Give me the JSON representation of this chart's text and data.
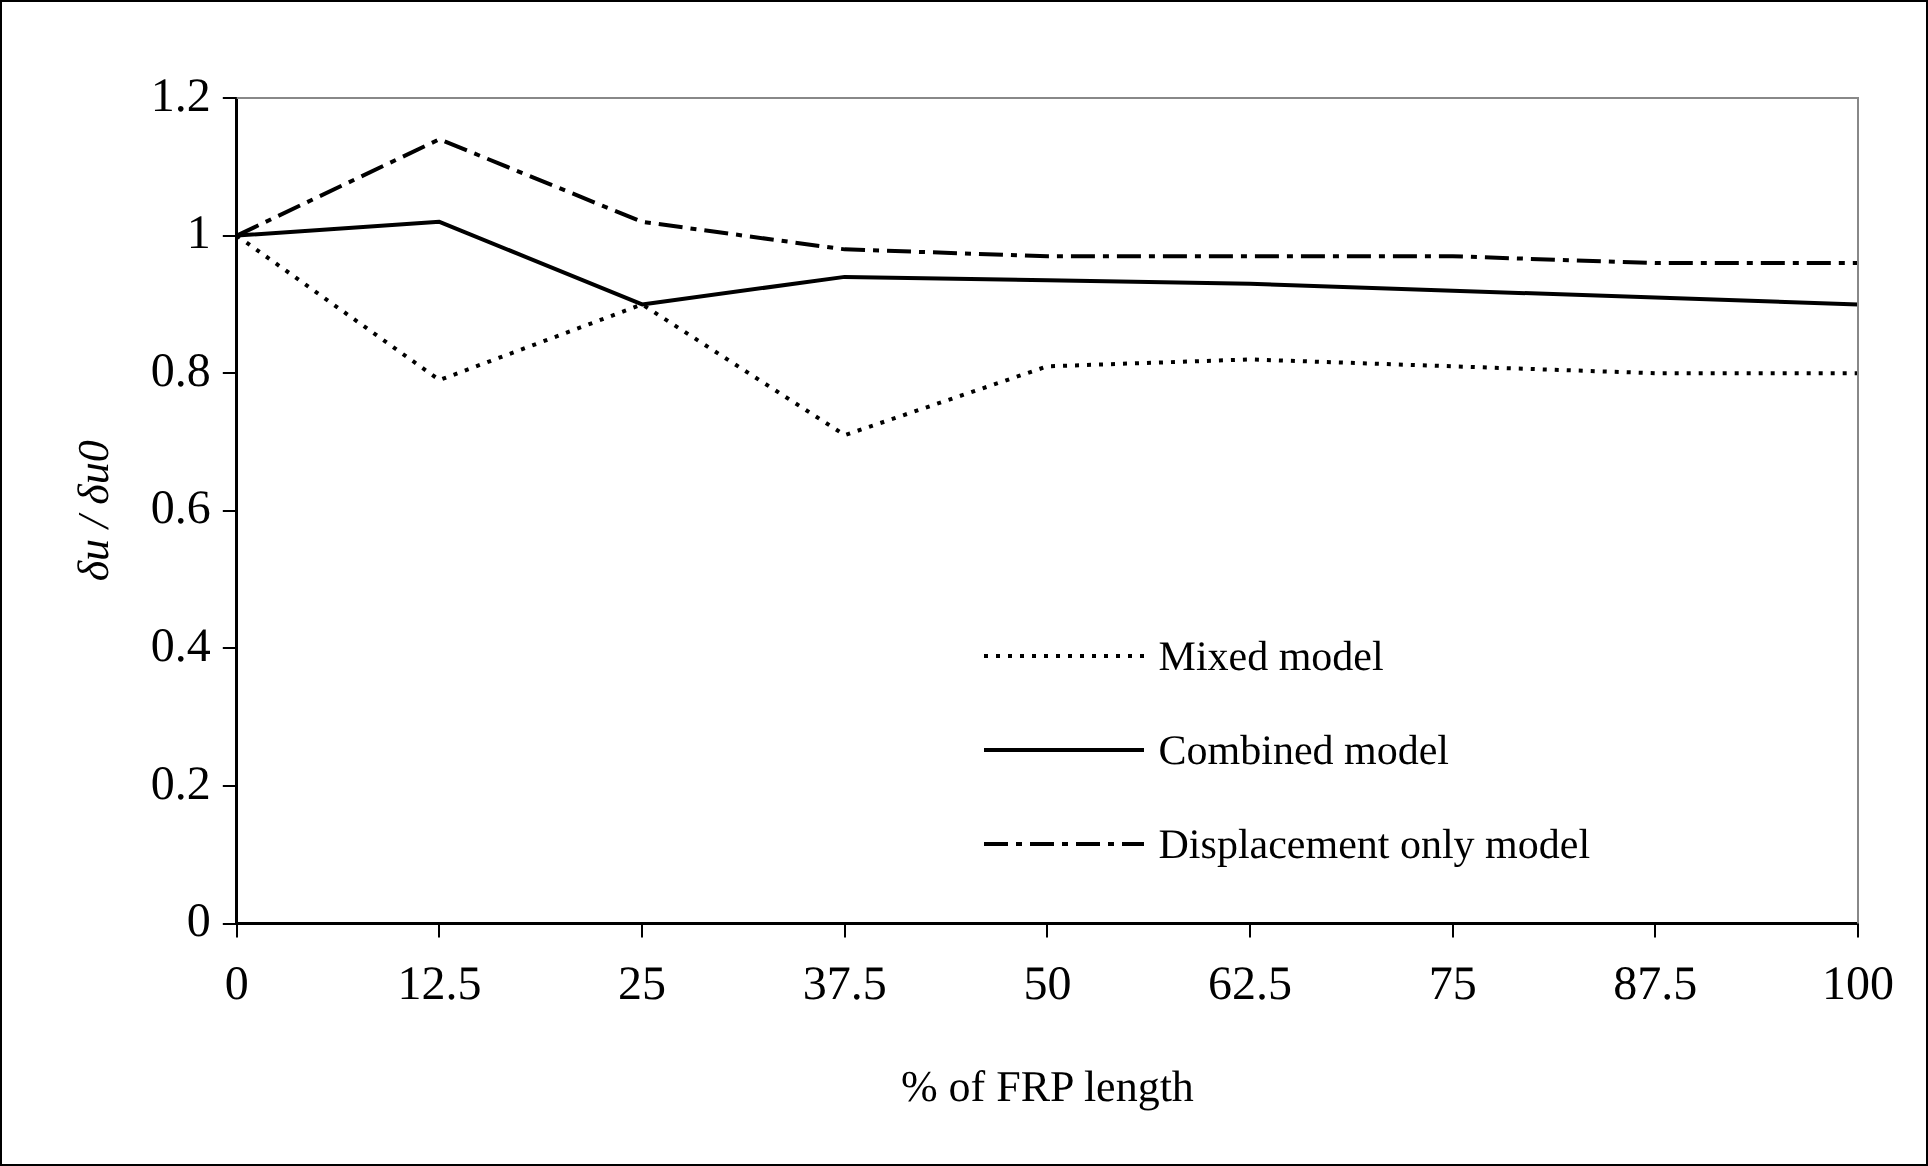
{
  "chart_data": {
    "type": "line",
    "xlabel": "% of FRP length",
    "ylabel": "δu / δu0",
    "categories": [
      "0",
      "12.5",
      "25",
      "37.5",
      "50",
      "62.5",
      "75",
      "87.5",
      "100"
    ],
    "series": [
      {
        "name": "Mixed model",
        "color": "#000000",
        "line_style": "dotted",
        "values": [
          1,
          0.79,
          0.9,
          0.71,
          0.81,
          0.82,
          0.81,
          0.8,
          0.8
        ]
      },
      {
        "name": "Combined model",
        "color": "#000000",
        "line_style": "solid",
        "values": [
          1,
          1.02,
          0.9,
          0.94,
          0.935,
          0.93,
          0.92,
          0.91,
          0.9
        ]
      },
      {
        "name": "Displacement only model",
        "color": "#000000",
        "line_style": "dashed",
        "values": [
          1,
          1.14,
          1.02,
          0.98,
          0.97,
          0.97,
          0.97,
          0.96,
          0.96
        ]
      }
    ],
    "ylim": [
      0,
      1.2
    ],
    "yticks": [
      0,
      0.2,
      0.4,
      0.6,
      0.8,
      1,
      1.2
    ],
    "grid": false,
    "legend": "bottom right",
    "marker": "none"
  }
}
